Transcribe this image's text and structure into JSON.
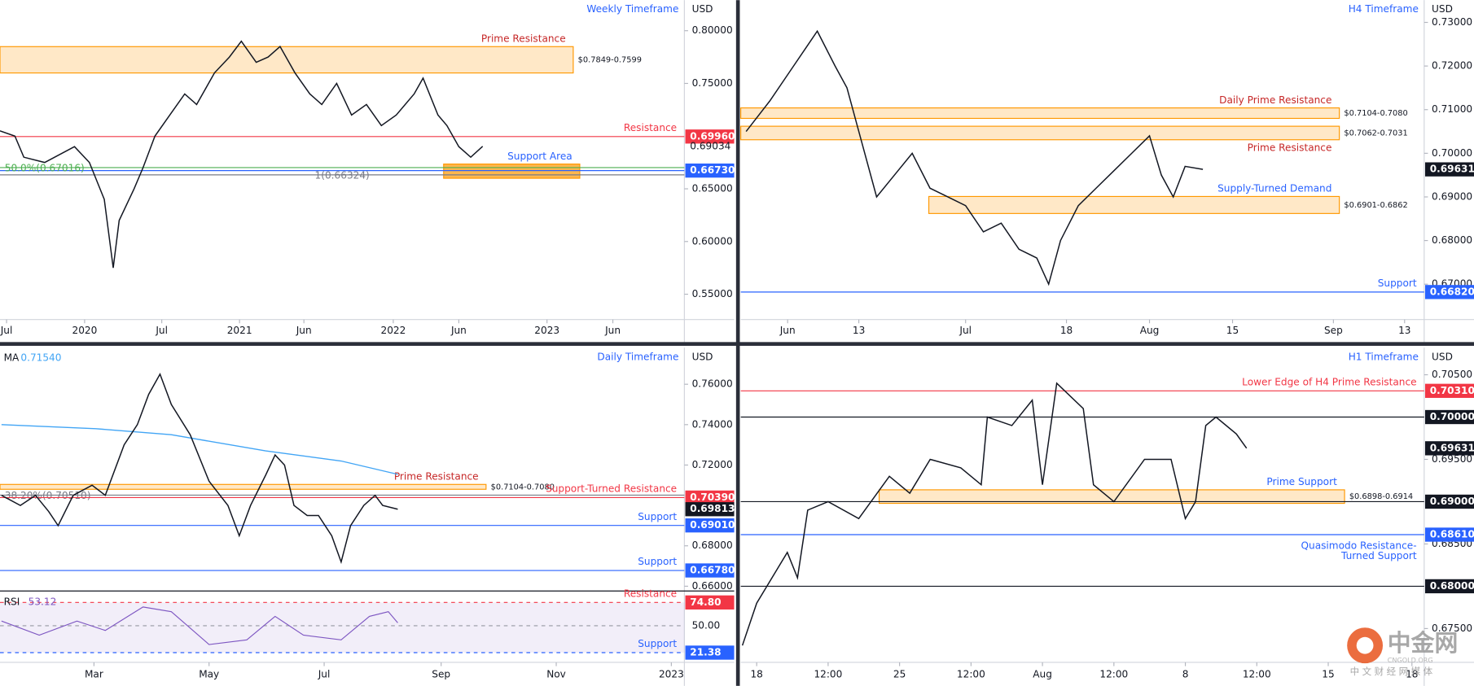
{
  "chart_data": [
    {
      "type": "line",
      "title": "Weekly Timeframe",
      "currency": "USD",
      "color": "#131722",
      "xlim": [
        0,
        229.7
      ],
      "xticks": [
        {
          "value": 2.2,
          "label": "Jul"
        },
        {
          "value": 28.4,
          "label": "2020"
        },
        {
          "value": 54.3,
          "label": "Jul"
        },
        {
          "value": 80.4,
          "label": "2021"
        },
        {
          "value": 102,
          "label": "Jun"
        },
        {
          "value": 132,
          "label": "2022"
        },
        {
          "value": 154,
          "label": "Jun"
        },
        {
          "value": 183.6,
          "label": "2023"
        },
        {
          "value": 205.7,
          "label": "Jun"
        }
      ],
      "ylim": [
        0.526,
        0.829
      ],
      "yticks": [
        {
          "value": 0.8,
          "label": "0.80000"
        },
        {
          "value": 0.75,
          "label": "0.75000"
        },
        {
          "value": 0.65,
          "label": "0.65000"
        },
        {
          "value": 0.6,
          "label": "0.60000"
        },
        {
          "value": 0.55,
          "label": "0.55000"
        }
      ],
      "x": [
        0,
        5,
        8,
        15,
        25,
        30,
        35,
        38,
        40,
        45,
        48,
        52,
        57,
        62,
        66,
        72,
        77,
        81,
        86,
        90,
        94,
        99,
        104,
        108,
        113,
        118,
        123,
        128,
        133,
        139,
        142,
        147,
        150,
        154,
        158,
        162
      ],
      "values": [
        0.705,
        0.7,
        0.68,
        0.675,
        0.69,
        0.675,
        0.64,
        0.575,
        0.62,
        0.65,
        0.67,
        0.7,
        0.72,
        0.74,
        0.73,
        0.76,
        0.775,
        0.79,
        0.77,
        0.775,
        0.785,
        0.76,
        0.74,
        0.73,
        0.75,
        0.72,
        0.73,
        0.71,
        0.72,
        0.74,
        0.755,
        0.72,
        0.71,
        0.69,
        0.68,
        0.69034
      ],
      "zones": [
        {
          "name": "Prime Resistance",
          "range": [
            0.7849,
            0.7599
          ],
          "label": "$0.7849-0.7599",
          "to": 192.4,
          "color": "#ff9800"
        },
        {
          "name": "Support Area",
          "range": [
            0.6735,
            0.66
          ],
          "from": 148.9,
          "to": 194.6,
          "color": "#ff9800",
          "solid": true
        }
      ],
      "levels": [
        {
          "name": "Resistance",
          "value": 0.6996,
          "label": "0.69960",
          "color": "#f23645"
        },
        {
          "value": 0.69034,
          "label": "0.69034",
          "color": "#131722",
          "line": false
        },
        {
          "value": 0.6673,
          "label": "0.66730",
          "color": "#2962ff"
        },
        {
          "name": "50.0%(0.67016)",
          "value": 0.67016,
          "color": "#4caf50",
          "align": "left"
        },
        {
          "name": "1(0.66324)",
          "value": 0.66324,
          "color": "#787b86",
          "align": "center"
        }
      ]
    },
    {
      "type": "line",
      "title": "H4 Timeframe",
      "currency": "USD",
      "color": "#131722",
      "xlim": [
        -7.9,
        107.3
      ],
      "xticks": [
        {
          "value": 0,
          "label": "Jun"
        },
        {
          "value": 12,
          "label": "13"
        },
        {
          "value": 30,
          "label": "Jul"
        },
        {
          "value": 47,
          "label": "18"
        },
        {
          "value": 61,
          "label": "Aug"
        },
        {
          "value": 75,
          "label": "15"
        },
        {
          "value": 92,
          "label": "Sep"
        },
        {
          "value": 104,
          "label": "13"
        }
      ],
      "ylim": [
        0.6619,
        0.7351
      ],
      "yticks": [
        {
          "value": 0.73,
          "label": "0.73000"
        },
        {
          "value": 0.72,
          "label": "0.72000"
        },
        {
          "value": 0.71,
          "label": "0.71000"
        },
        {
          "value": 0.7,
          "label": "0.70000"
        },
        {
          "value": 0.69,
          "label": "0.69000"
        },
        {
          "value": 0.68,
          "label": "0.68000"
        },
        {
          "value": 0.67,
          "label": "0.67000"
        }
      ],
      "x": [
        -7,
        -3,
        1,
        3,
        5,
        8,
        10,
        12,
        15,
        18,
        21,
        24,
        27,
        30,
        33,
        36,
        39,
        42,
        44,
        46,
        49,
        52,
        55,
        58,
        61,
        63,
        65,
        67,
        70
      ],
      "values": [
        0.705,
        0.712,
        0.72,
        0.724,
        0.728,
        0.72,
        0.715,
        0.705,
        0.69,
        0.695,
        0.7,
        0.692,
        0.69,
        0.688,
        0.682,
        0.684,
        0.678,
        0.676,
        0.67,
        0.68,
        0.688,
        0.692,
        0.696,
        0.7,
        0.704,
        0.695,
        0.69,
        0.697,
        0.69631
      ],
      "zones": [
        {
          "name": "Daily Prime Resistance",
          "range": [
            0.7104,
            0.708
          ],
          "label": "$0.7104-0.7080",
          "to": 93,
          "color": "#ff9800"
        },
        {
          "name": "Prime Resistance",
          "range": [
            0.7062,
            0.7031
          ],
          "label": "$0.7062-0.7031",
          "to": 93,
          "color": "#ff9800",
          "name_pos": "below"
        },
        {
          "name": "Supply-Turned Demand",
          "range": [
            0.6901,
            0.6862
          ],
          "label": "$0.6901-0.6862",
          "from": 23.8,
          "to": 93,
          "color": "#ff9800"
        }
      ],
      "levels": [
        {
          "value": 0.69631,
          "label": "0.69631",
          "color": "#131722",
          "line": false
        },
        {
          "name": "Support",
          "value": 0.6682,
          "label": "0.66820",
          "color": "#2962ff"
        }
      ]
    },
    {
      "type": "line",
      "title": "Daily Timeframe",
      "currency": "USD",
      "color": "#131722",
      "xlim": [
        9.2,
        371.9
      ],
      "xticks": [
        {
          "value": 59,
          "label": "Mar"
        },
        {
          "value": 120,
          "label": "May"
        },
        {
          "value": 181,
          "label": "Jul"
        },
        {
          "value": 243,
          "label": "Sep"
        },
        {
          "value": 304,
          "label": "Nov"
        },
        {
          "value": 365,
          "label": "2023"
        }
      ],
      "ylim": [
        0.6581,
        0.7781
      ],
      "yticks": [
        {
          "value": 0.76,
          "label": "0.76000"
        },
        {
          "value": 0.74,
          "label": "0.74000"
        },
        {
          "value": 0.72,
          "label": "0.72000"
        },
        {
          "value": 0.68,
          "label": "0.68000"
        },
        {
          "value": 0.66,
          "label": "0.66000"
        }
      ],
      "x": [
        10,
        20,
        28,
        35,
        40,
        48,
        58,
        65,
        75,
        82,
        88,
        94,
        100,
        110,
        120,
        130,
        136,
        142,
        150,
        155,
        160,
        165,
        172,
        178,
        185,
        190,
        195,
        202,
        208,
        212,
        220
      ],
      "values": [
        0.705,
        0.7,
        0.705,
        0.697,
        0.69,
        0.705,
        0.71,
        0.705,
        0.73,
        0.74,
        0.755,
        0.765,
        0.75,
        0.735,
        0.712,
        0.7,
        0.685,
        0.7,
        0.715,
        0.725,
        0.72,
        0.7,
        0.695,
        0.695,
        0.685,
        0.672,
        0.69,
        0.7,
        0.705,
        0.7,
        0.69813
      ],
      "ma": {
        "name": "MA",
        "label": "0.71540",
        "color": "#42a5f5",
        "x": [
          10,
          60,
          100,
          150,
          190,
          220
        ],
        "values": [
          0.74,
          0.738,
          0.735,
          0.727,
          0.722,
          0.7154
        ]
      },
      "zones": [
        {
          "name": "Prime Resistance",
          "range": [
            0.7104,
            0.708
          ],
          "label": "$0.7104-0.7080",
          "to": 266.8,
          "color": "#ff9800"
        }
      ],
      "levels": [
        {
          "name": "38.20%(0.70510)",
          "value": 0.7051,
          "color": "#787b86",
          "align": "left"
        },
        {
          "name": "Support-Turned Resistance",
          "value": 0.7039,
          "label": "0.70390",
          "color": "#f23645"
        },
        {
          "value": 0.69813,
          "label": "0.69813",
          "color": "#131722",
          "line": false
        },
        {
          "name": "Support",
          "value": 0.6901,
          "label": "0.69010",
          "color": "#2962ff"
        },
        {
          "name": "Support",
          "value": 0.6678,
          "label": "0.66780",
          "color": "#2962ff"
        }
      ],
      "rsi": {
        "name": "RSI",
        "label": "53.12",
        "color": "#7e57c2",
        "ylim": [
          11,
          86
        ],
        "yticks": [
          {
            "value": 50,
            "label": "50.00"
          }
        ],
        "x": [
          10,
          30,
          50,
          65,
          85,
          100,
          120,
          140,
          155,
          170,
          190,
          205,
          215,
          220
        ],
        "values": [
          55,
          40,
          55,
          45,
          70,
          65,
          30,
          35,
          60,
          40,
          35,
          60,
          65,
          53.12
        ],
        "levels": [
          {
            "name": "Resistance",
            "value": 74.8,
            "label": "74.80",
            "color": "#f23645"
          },
          {
            "name": "Support",
            "value": 21.38,
            "label": "21.38",
            "color": "#2962ff"
          }
        ]
      }
    },
    {
      "type": "line",
      "title": "H1 Timeframe",
      "currency": "USD",
      "color": "#131722",
      "xlim": [
        -0.78,
        32.7
      ],
      "xticks": [
        {
          "value": 0,
          "label": "18"
        },
        {
          "value": 3.5,
          "label": "12:00"
        },
        {
          "value": 7,
          "label": "25"
        },
        {
          "value": 10.5,
          "label": "12:00"
        },
        {
          "value": 14,
          "label": "Aug"
        },
        {
          "value": 17.5,
          "label": "12:00"
        },
        {
          "value": 21,
          "label": "8"
        },
        {
          "value": 24.5,
          "label": "12:00"
        },
        {
          "value": 28,
          "label": "15"
        },
        {
          "value": 32.1,
          "label": "18"
        }
      ],
      "ylim": [
        0.671,
        0.7082
      ],
      "yticks": [
        {
          "value": 0.705,
          "label": "0.70500"
        },
        {
          "value": 0.695,
          "label": "0.69500"
        },
        {
          "value": 0.685,
          "label": "0.68500"
        },
        {
          "value": 0.675,
          "label": "0.67500"
        }
      ],
      "x": [
        -0.7,
        0,
        1,
        1.5,
        2,
        2.5,
        3.5,
        5,
        6.5,
        7.5,
        8.5,
        10,
        11,
        11.3,
        12.5,
        13.5,
        14,
        14.7,
        16,
        16.5,
        17.5,
        19,
        20.3,
        21,
        21.5,
        22,
        22.5,
        23.5,
        24
      ],
      "values": [
        0.673,
        0.678,
        0.682,
        0.684,
        0.681,
        0.689,
        0.69,
        0.688,
        0.693,
        0.691,
        0.695,
        0.694,
        0.692,
        0.7,
        0.699,
        0.702,
        0.692,
        0.704,
        0.701,
        0.692,
        0.69,
        0.695,
        0.695,
        0.688,
        0.69,
        0.699,
        0.7,
        0.698,
        0.69631
      ],
      "zones": [
        {
          "name": "Prime Support",
          "range": [
            0.6898,
            0.6914
          ],
          "label": "$0.6898-0.6914",
          "from": 6,
          "to": 28.8,
          "color": "#ff9800"
        }
      ],
      "levels": [
        {
          "name": "Lower Edge of H4 Prime Resistance",
          "value": 0.7031,
          "label": "0.70310",
          "color": "#f23645"
        },
        {
          "value": 0.7,
          "label": "0.70000",
          "color": "#131722"
        },
        {
          "value": 0.69631,
          "label": "0.69631",
          "color": "#131722",
          "line": false
        },
        {
          "value": 0.69,
          "label": "0.69000",
          "color": "#131722"
        },
        {
          "name": [
            "Quasimodo Resistance-",
            "Turned Support"
          ],
          "value": 0.6861,
          "label": "0.68610",
          "color": "#2962ff"
        },
        {
          "value": 0.68,
          "label": "0.68000",
          "color": "#131722"
        }
      ]
    }
  ],
  "watermark": {
    "logo": "中金网",
    "site": "CNGOLD.ORG",
    "slogan": "中文财经网媒体"
  }
}
